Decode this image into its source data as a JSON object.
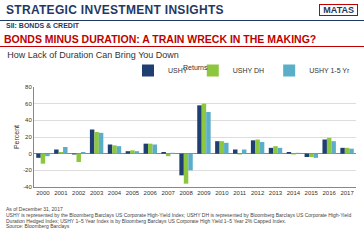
{
  "header": {
    "banner": "STRATEGIC INVESTMENT INSIGHTS",
    "logo": "MATAS",
    "section": "SII: BONDS & CREDIT",
    "headline": "BONDS MINUS DURATION: A TRAIN WRECK IN THE MAKING?"
  },
  "chart_data": {
    "type": "bar",
    "title": "How Lack of Duration Can Bring You Down",
    "subtitle": "Returns",
    "y_label": "Percent",
    "categories": [
      "2000",
      "2001",
      "2002",
      "2003",
      "2004",
      "2005",
      "2006",
      "2007",
      "2008",
      "2009",
      "2010",
      "2011",
      "2012",
      "2013",
      "2014",
      "2015",
      "2016",
      "2017"
    ],
    "series": [
      {
        "name": "USHY",
        "color": "#1f3f73",
        "values": [
          -5,
          5,
          -1,
          29,
          11,
          3,
          12,
          2,
          -26,
          58,
          15,
          5,
          16,
          7,
          2,
          -4,
          17,
          7
        ]
      },
      {
        "name": "USHY DH",
        "color": "#8dc63f",
        "values": [
          -12,
          2,
          -10,
          26,
          10,
          4,
          12,
          -3,
          -36,
          60,
          15,
          -1,
          17,
          9,
          -1,
          -4,
          19,
          7
        ]
      },
      {
        "name": "USHY 1-5 Yr",
        "color": "#5aaec8",
        "values": [
          -3,
          8,
          2,
          25,
          9,
          3,
          11,
          1,
          -20,
          50,
          13,
          5,
          14,
          7,
          1,
          -5,
          15,
          6
        ]
      }
    ],
    "ylim": [
      -40,
      80
    ],
    "yticks": [
      -40,
      -20,
      0,
      20,
      40,
      60,
      80
    ],
    "grid": true,
    "legend": "top right"
  },
  "footnotes": [
    "As of December 31, 2017",
    "USHY is represented by the Bloomberg Barclays US Corporate High-Yield Index; USHY DH is represented by Bloomberg Barclays US Corporate High-Yield Duration Hedged Index; USHY 1–5 Year Index is by Bloomberg Barclays US Corporate High Yield 1–5 Year 2% Capped Index.",
    "Source: Bloomberg Barclays"
  ]
}
